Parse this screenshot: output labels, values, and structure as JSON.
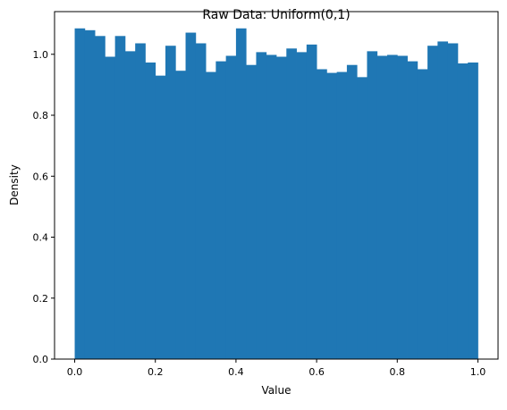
{
  "chart_data": {
    "type": "bar",
    "title": "Raw Data: Uniform(0,1)",
    "xlabel": "Value",
    "ylabel": "Density",
    "xlim": [
      -0.05,
      1.05
    ],
    "ylim": [
      0.0,
      1.14
    ],
    "x_ticks": [
      0.0,
      0.2,
      0.4,
      0.6,
      0.8,
      1.0
    ],
    "x_tick_labels": [
      "0.0",
      "0.2",
      "0.4",
      "0.6",
      "0.8",
      "1.0"
    ],
    "y_ticks": [
      0.0,
      0.2,
      0.4,
      0.6,
      0.8,
      1.0
    ],
    "y_tick_labels": [
      "0.0",
      "0.2",
      "0.4",
      "0.6",
      "0.8",
      "1.0"
    ],
    "grid": false,
    "color": "#1f77b4",
    "bin_edges_start": 0.0,
    "bin_width": 0.025,
    "values": [
      1.085,
      1.079,
      1.06,
      0.992,
      1.06,
      1.01,
      1.036,
      0.973,
      0.93,
      1.028,
      0.946,
      1.071,
      1.036,
      0.942,
      0.977,
      0.995,
      1.085,
      0.965,
      1.007,
      0.998,
      0.992,
      1.019,
      1.007,
      1.032,
      0.951,
      0.939,
      0.942,
      0.965,
      0.925,
      1.01,
      0.995,
      0.998,
      0.995,
      0.977,
      0.951,
      1.028,
      1.042,
      1.036,
      0.97,
      0.973
    ]
  }
}
